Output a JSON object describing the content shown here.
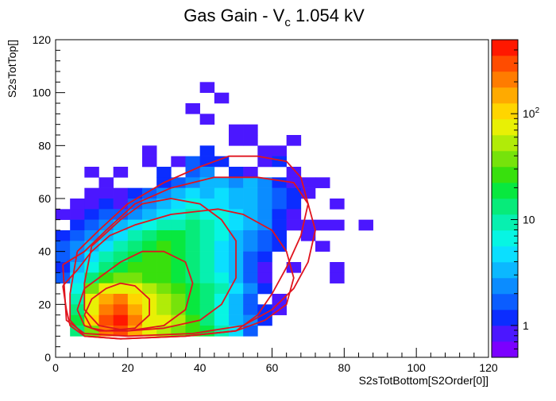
{
  "chart_data": {
    "type": "heatmap",
    "title_main": "Gas Gain - V",
    "title_sub": "c",
    "title_tail": " 1.054 kV",
    "xlabel": "S2sTotBottom[S2Order[0]]",
    "ylabel": "S2sTotTop[]",
    "xlim": [
      0,
      120
    ],
    "ylim": [
      0,
      120
    ],
    "x_ticks": [
      "0",
      "20",
      "40",
      "60",
      "80",
      "100",
      "120"
    ],
    "y_ticks": [
      "0",
      "20",
      "40",
      "60",
      "80",
      "100",
      "120"
    ],
    "z_scale": "log",
    "z_range": [
      0.5,
      500
    ],
    "z_tick_labels": [
      "1",
      "10",
      "10^2"
    ],
    "bin_width": 4,
    "bin_height": 4,
    "colors": [
      "#7b00ff",
      "#4b17ff",
      "#0b2dff",
      "#0b5dff",
      "#0b8cff",
      "#0bb8ff",
      "#0bdfff",
      "#07f5e3",
      "#07f0b0",
      "#07eb7a",
      "#08e83f",
      "#38e00d",
      "#76e30b",
      "#b1eb08",
      "#e8f005",
      "#ffd500",
      "#ffaa00",
      "#ff7c00",
      "#ff4c00",
      "#ff1800"
    ],
    "bins": [
      [
        40,
        100,
        1
      ],
      [
        44,
        96,
        1
      ],
      [
        36,
        92,
        1
      ],
      [
        40,
        88,
        1
      ],
      [
        48,
        84,
        1
      ],
      [
        52,
        84,
        1
      ],
      [
        48,
        80,
        1
      ],
      [
        52,
        80,
        1
      ],
      [
        64,
        80,
        1
      ],
      [
        24,
        76,
        1
      ],
      [
        40,
        76,
        2
      ],
      [
        56,
        76,
        1
      ],
      [
        60,
        76,
        1
      ],
      [
        24,
        72,
        1
      ],
      [
        32,
        72,
        1
      ],
      [
        36,
        72,
        3
      ],
      [
        40,
        72,
        2
      ],
      [
        44,
        72,
        2
      ],
      [
        56,
        72,
        1
      ],
      [
        60,
        72,
        2
      ],
      [
        8,
        68,
        1
      ],
      [
        16,
        68,
        1
      ],
      [
        28,
        68,
        2
      ],
      [
        36,
        68,
        3
      ],
      [
        40,
        68,
        4
      ],
      [
        48,
        68,
        2
      ],
      [
        52,
        68,
        1
      ],
      [
        64,
        68,
        1
      ],
      [
        12,
        64,
        1
      ],
      [
        28,
        64,
        2
      ],
      [
        32,
        64,
        3
      ],
      [
        36,
        64,
        4
      ],
      [
        40,
        64,
        5
      ],
      [
        44,
        64,
        5
      ],
      [
        48,
        64,
        4
      ],
      [
        52,
        64,
        5
      ],
      [
        56,
        64,
        4
      ],
      [
        60,
        64,
        2
      ],
      [
        64,
        64,
        1
      ],
      [
        68,
        64,
        1
      ],
      [
        72,
        64,
        1
      ],
      [
        8,
        60,
        1
      ],
      [
        12,
        60,
        1
      ],
      [
        16,
        60,
        1
      ],
      [
        20,
        60,
        2
      ],
      [
        24,
        60,
        3
      ],
      [
        28,
        60,
        4
      ],
      [
        32,
        60,
        5
      ],
      [
        36,
        60,
        6
      ],
      [
        40,
        60,
        5
      ],
      [
        44,
        60,
        6
      ],
      [
        48,
        60,
        5
      ],
      [
        52,
        60,
        5
      ],
      [
        56,
        60,
        4
      ],
      [
        60,
        60,
        3
      ],
      [
        64,
        60,
        2
      ],
      [
        68,
        60,
        1
      ],
      [
        4,
        56,
        1
      ],
      [
        8,
        56,
        1
      ],
      [
        12,
        56,
        2
      ],
      [
        16,
        56,
        1
      ],
      [
        20,
        56,
        3
      ],
      [
        24,
        56,
        4
      ],
      [
        28,
        56,
        5
      ],
      [
        32,
        56,
        6
      ],
      [
        36,
        56,
        7
      ],
      [
        40,
        56,
        6
      ],
      [
        44,
        56,
        6
      ],
      [
        48,
        56,
        5
      ],
      [
        52,
        56,
        5
      ],
      [
        56,
        56,
        4
      ],
      [
        60,
        56,
        3
      ],
      [
        64,
        56,
        2
      ],
      [
        76,
        56,
        1
      ],
      [
        0,
        52,
        1
      ],
      [
        4,
        52,
        1
      ],
      [
        8,
        52,
        2
      ],
      [
        12,
        52,
        3
      ],
      [
        16,
        52,
        3
      ],
      [
        20,
        52,
        4
      ],
      [
        24,
        52,
        5
      ],
      [
        28,
        52,
        6
      ],
      [
        32,
        52,
        7
      ],
      [
        36,
        52,
        8
      ],
      [
        40,
        52,
        7
      ],
      [
        44,
        52,
        7
      ],
      [
        48,
        52,
        6
      ],
      [
        52,
        52,
        5
      ],
      [
        56,
        52,
        4
      ],
      [
        60,
        52,
        2
      ],
      [
        64,
        52,
        1
      ],
      [
        4,
        48,
        2
      ],
      [
        8,
        48,
        3
      ],
      [
        12,
        48,
        4
      ],
      [
        16,
        48,
        5
      ],
      [
        20,
        48,
        6
      ],
      [
        24,
        48,
        7
      ],
      [
        28,
        48,
        8
      ],
      [
        32,
        48,
        8
      ],
      [
        36,
        48,
        9
      ],
      [
        40,
        48,
        8
      ],
      [
        44,
        48,
        7
      ],
      [
        48,
        48,
        6
      ],
      [
        52,
        48,
        5
      ],
      [
        56,
        48,
        4
      ],
      [
        60,
        48,
        2
      ],
      [
        64,
        48,
        1
      ],
      [
        68,
        48,
        1
      ],
      [
        72,
        48,
        1
      ],
      [
        76,
        48,
        1
      ],
      [
        84,
        48,
        1
      ],
      [
        0,
        44,
        2
      ],
      [
        4,
        44,
        3
      ],
      [
        8,
        44,
        4
      ],
      [
        12,
        44,
        5
      ],
      [
        16,
        44,
        6
      ],
      [
        20,
        44,
        8
      ],
      [
        24,
        44,
        9
      ],
      [
        28,
        44,
        10
      ],
      [
        32,
        44,
        10
      ],
      [
        36,
        44,
        9
      ],
      [
        40,
        44,
        8
      ],
      [
        44,
        44,
        7
      ],
      [
        48,
        44,
        5
      ],
      [
        52,
        44,
        4
      ],
      [
        56,
        44,
        3
      ],
      [
        60,
        44,
        2
      ],
      [
        68,
        44,
        1
      ],
      [
        0,
        40,
        3
      ],
      [
        4,
        40,
        4
      ],
      [
        8,
        40,
        5
      ],
      [
        12,
        40,
        6
      ],
      [
        16,
        40,
        8
      ],
      [
        20,
        40,
        9
      ],
      [
        24,
        40,
        10
      ],
      [
        28,
        40,
        11
      ],
      [
        32,
        40,
        10
      ],
      [
        36,
        40,
        9
      ],
      [
        40,
        40,
        8
      ],
      [
        44,
        40,
        6
      ],
      [
        48,
        40,
        5
      ],
      [
        52,
        40,
        4
      ],
      [
        56,
        40,
        3
      ],
      [
        60,
        40,
        2
      ],
      [
        72,
        40,
        1
      ],
      [
        0,
        36,
        3
      ],
      [
        4,
        36,
        4
      ],
      [
        8,
        36,
        6
      ],
      [
        12,
        36,
        8
      ],
      [
        16,
        36,
        9
      ],
      [
        20,
        36,
        10
      ],
      [
        24,
        36,
        11
      ],
      [
        28,
        36,
        11
      ],
      [
        32,
        36,
        10
      ],
      [
        36,
        36,
        9
      ],
      [
        40,
        36,
        8
      ],
      [
        44,
        36,
        6
      ],
      [
        48,
        36,
        5
      ],
      [
        52,
        36,
        3
      ],
      [
        56,
        36,
        2
      ],
      [
        0,
        32,
        2
      ],
      [
        4,
        32,
        5
      ],
      [
        8,
        32,
        7
      ],
      [
        12,
        32,
        9
      ],
      [
        16,
        32,
        10
      ],
      [
        20,
        32,
        11
      ],
      [
        24,
        32,
        11
      ],
      [
        28,
        32,
        11
      ],
      [
        32,
        32,
        10
      ],
      [
        36,
        32,
        9
      ],
      [
        40,
        32,
        8
      ],
      [
        44,
        32,
        6
      ],
      [
        48,
        32,
        5
      ],
      [
        52,
        32,
        3
      ],
      [
        56,
        32,
        1
      ],
      [
        64,
        32,
        1
      ],
      [
        76,
        32,
        1
      ],
      [
        0,
        28,
        3
      ],
      [
        4,
        28,
        6
      ],
      [
        8,
        28,
        9
      ],
      [
        12,
        28,
        11
      ],
      [
        16,
        28,
        12
      ],
      [
        20,
        28,
        12
      ],
      [
        24,
        28,
        11
      ],
      [
        28,
        28,
        11
      ],
      [
        32,
        28,
        10
      ],
      [
        36,
        28,
        9
      ],
      [
        40,
        28,
        8
      ],
      [
        44,
        28,
        7
      ],
      [
        48,
        28,
        5
      ],
      [
        52,
        28,
        3
      ],
      [
        56,
        28,
        1
      ],
      [
        76,
        28,
        1
      ],
      [
        4,
        24,
        7
      ],
      [
        8,
        24,
        12
      ],
      [
        12,
        24,
        14
      ],
      [
        16,
        24,
        14
      ],
      [
        20,
        24,
        14
      ],
      [
        24,
        24,
        13
      ],
      [
        28,
        24,
        12
      ],
      [
        32,
        24,
        11
      ],
      [
        36,
        24,
        10
      ],
      [
        40,
        24,
        9
      ],
      [
        44,
        24,
        8
      ],
      [
        48,
        24,
        6
      ],
      [
        52,
        24,
        4
      ],
      [
        56,
        24,
        2
      ],
      [
        4,
        20,
        8
      ],
      [
        8,
        20,
        14
      ],
      [
        12,
        20,
        16
      ],
      [
        16,
        20,
        17
      ],
      [
        20,
        20,
        15
      ],
      [
        24,
        20,
        14
      ],
      [
        28,
        20,
        13
      ],
      [
        32,
        20,
        12
      ],
      [
        36,
        20,
        10
      ],
      [
        40,
        20,
        9
      ],
      [
        44,
        20,
        7
      ],
      [
        48,
        20,
        5
      ],
      [
        52,
        20,
        3
      ],
      [
        60,
        20,
        1
      ],
      [
        4,
        16,
        9
      ],
      [
        8,
        16,
        14
      ],
      [
        12,
        16,
        17
      ],
      [
        16,
        16,
        18
      ],
      [
        20,
        16,
        16
      ],
      [
        24,
        16,
        14
      ],
      [
        28,
        16,
        13
      ],
      [
        32,
        16,
        12
      ],
      [
        36,
        16,
        10
      ],
      [
        40,
        16,
        9
      ],
      [
        44,
        16,
        7
      ],
      [
        48,
        16,
        5
      ],
      [
        52,
        16,
        3
      ],
      [
        56,
        16,
        2
      ],
      [
        60,
        16,
        1
      ],
      [
        4,
        12,
        10
      ],
      [
        8,
        12,
        15
      ],
      [
        12,
        12,
        18
      ],
      [
        16,
        12,
        19
      ],
      [
        20,
        12,
        17
      ],
      [
        24,
        12,
        14
      ],
      [
        28,
        12,
        14
      ],
      [
        32,
        12,
        13
      ],
      [
        36,
        12,
        11
      ],
      [
        40,
        12,
        9
      ],
      [
        44,
        12,
        7
      ],
      [
        48,
        12,
        5
      ],
      [
        52,
        12,
        4
      ],
      [
        56,
        12,
        2
      ],
      [
        4,
        8,
        9
      ],
      [
        8,
        8,
        12
      ],
      [
        12,
        8,
        17
      ],
      [
        16,
        8,
        18
      ],
      [
        20,
        8,
        16
      ],
      [
        24,
        8,
        14
      ],
      [
        28,
        8,
        13
      ],
      [
        32,
        8,
        12
      ],
      [
        36,
        8,
        11
      ],
      [
        40,
        8,
        10
      ],
      [
        44,
        8,
        8
      ],
      [
        48,
        8,
        6
      ],
      [
        52,
        8,
        3
      ]
    ],
    "contours": [
      [
        [
          2,
          27
        ],
        [
          6,
          33
        ],
        [
          10,
          40
        ],
        [
          15,
          46
        ],
        [
          22,
          50
        ],
        [
          32,
          54
        ],
        [
          45,
          56
        ],
        [
          52,
          54
        ],
        [
          60,
          48
        ],
        [
          64,
          40
        ],
        [
          66,
          30
        ],
        [
          64,
          20
        ],
        [
          58,
          14
        ],
        [
          50,
          10
        ],
        [
          36,
          8
        ],
        [
          18,
          7
        ],
        [
          8,
          8
        ],
        [
          4,
          12
        ],
        [
          3,
          18
        ],
        [
          2,
          27
        ]
      ],
      [
        [
          2,
          35
        ],
        [
          8,
          40
        ],
        [
          14,
          48
        ],
        [
          22,
          58
        ],
        [
          32,
          64
        ],
        [
          44,
          68
        ],
        [
          56,
          68
        ],
        [
          66,
          66
        ],
        [
          70,
          58
        ],
        [
          72,
          48
        ],
        [
          70,
          36
        ],
        [
          66,
          26
        ],
        [
          60,
          18
        ],
        [
          52,
          12
        ],
        [
          38,
          9
        ],
        [
          20,
          8
        ],
        [
          8,
          9
        ],
        [
          3,
          14
        ],
        [
          2,
          35
        ]
      ],
      [
        [
          6,
          40
        ],
        [
          12,
          48
        ],
        [
          20,
          58
        ],
        [
          30,
          66
        ],
        [
          40,
          72
        ],
        [
          48,
          76
        ],
        [
          56,
          76
        ],
        [
          64,
          74
        ],
        [
          68,
          68
        ],
        [
          70,
          58
        ],
        [
          68,
          46
        ],
        [
          64,
          34
        ],
        [
          60,
          24
        ],
        [
          56,
          16
        ],
        [
          50,
          10
        ],
        [
          36,
          8
        ],
        [
          18,
          7
        ],
        [
          8,
          8
        ],
        [
          4,
          14
        ],
        [
          4,
          24
        ],
        [
          6,
          40
        ]
      ],
      [
        [
          10,
          42
        ],
        [
          18,
          52
        ],
        [
          24,
          58
        ],
        [
          32,
          60
        ],
        [
          40,
          58
        ],
        [
          46,
          52
        ],
        [
          50,
          44
        ],
        [
          50,
          30
        ],
        [
          46,
          20
        ],
        [
          40,
          14
        ],
        [
          30,
          11
        ],
        [
          20,
          10
        ],
        [
          12,
          12
        ],
        [
          8,
          18
        ],
        [
          8,
          28
        ],
        [
          10,
          42
        ]
      ],
      [
        [
          6,
          18
        ],
        [
          8,
          26
        ],
        [
          12,
          30
        ],
        [
          18,
          36
        ],
        [
          24,
          40
        ],
        [
          30,
          40
        ],
        [
          36,
          36
        ],
        [
          38,
          28
        ],
        [
          36,
          18
        ],
        [
          30,
          12
        ],
        [
          20,
          10
        ],
        [
          12,
          10
        ],
        [
          8,
          12
        ],
        [
          6,
          18
        ]
      ],
      [
        [
          8,
          16
        ],
        [
          10,
          22
        ],
        [
          14,
          26
        ],
        [
          18,
          28
        ],
        [
          22,
          27
        ],
        [
          26,
          22
        ],
        [
          26,
          16
        ],
        [
          22,
          11
        ],
        [
          14,
          10
        ],
        [
          10,
          11
        ],
        [
          8,
          16
        ]
      ]
    ]
  }
}
